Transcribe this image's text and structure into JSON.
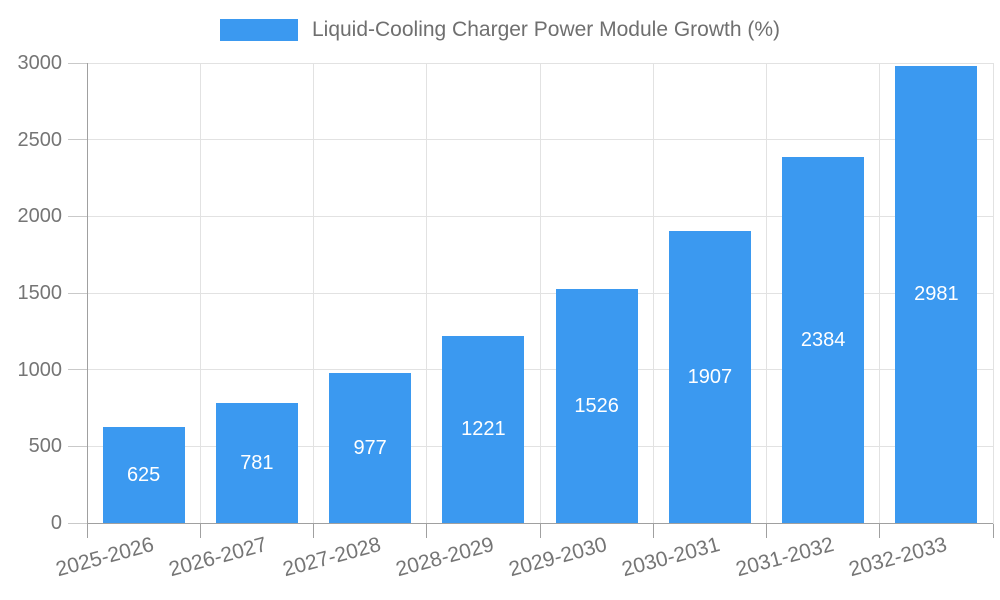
{
  "chart_data": {
    "type": "bar",
    "title": "Liquid-Cooling Charger Power Module Growth (%)",
    "categories": [
      "2025-2026",
      "2026-2027",
      "2027-2028",
      "2028-2029",
      "2029-2030",
      "2030-2031",
      "2031-2032",
      "2032-2033"
    ],
    "values": [
      625,
      781,
      977,
      1221,
      1526,
      1907,
      2384,
      2981
    ],
    "xlabel": "",
    "ylabel": "",
    "ylim": [
      0,
      3000
    ],
    "yticks": [
      0,
      500,
      1000,
      1500,
      2000,
      2500,
      3000
    ],
    "grid": true,
    "legend_position": "top",
    "value_labels": "inside-center",
    "colors": {
      "bar": "#3B99F0",
      "value_label": "#FFFFFF",
      "axis_line": "#A0A0A0",
      "grid_line": "#E2E2E2",
      "tick_line": "#C9C9C9",
      "text": "#757575",
      "legend_text": "#6F6F6F",
      "background": "#FFFFFF"
    }
  }
}
